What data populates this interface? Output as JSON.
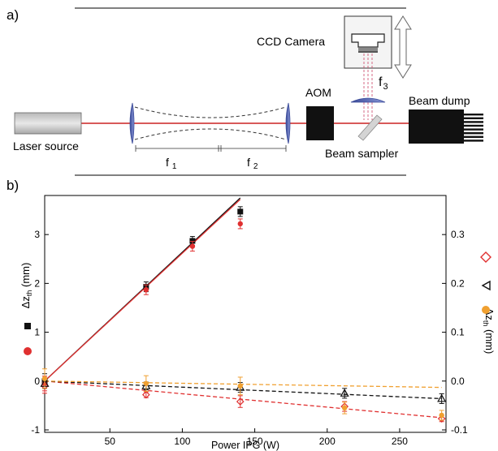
{
  "panel_a": {
    "label": "a)",
    "laser_label": "Laser source",
    "f1_label": "f",
    "f1_sub": "1",
    "f2_label": "f",
    "f2_sub": "2",
    "aom_label": "AOM",
    "ccd_label": "CCD Camera",
    "f3_label": "f",
    "f3_sub": "3",
    "beam_dump_label": "Beam dump",
    "beam_sampler_label": "Beam sampler",
    "colors": {
      "beam": "#cc2222",
      "lens": "#4a5aa8",
      "aom": "#111111"
    }
  },
  "panel_b": {
    "label": "b)",
    "xlabel": "Power IPG (W)",
    "left_ylabel": "Δz",
    "left_ylabel_sub": "th",
    "left_ylabel_unit": " (mm)",
    "right_ylabel": "Δz",
    "right_ylabel_sub": "th",
    "right_ylabel_unit": " (mm)"
  },
  "chart_data": {
    "type": "scatter",
    "xlabel": "Power IPG (W)",
    "x_ticks": [
      "50",
      "100",
      "150",
      "200",
      "250"
    ],
    "left_y_ticks": [
      "3",
      "2",
      "1",
      "0",
      "-1"
    ],
    "right_y_ticks": [
      "0.3",
      "0.2",
      "0.1",
      "0.0",
      "-0.1"
    ],
    "xlim": [
      5,
      282
    ],
    "ylim_left": [
      -1.05,
      3.8
    ],
    "ylim_right": [
      -0.105,
      0.38
    ],
    "grid": false,
    "legend_placement": "beside-axes",
    "series": [
      {
        "axis": "left",
        "marker": "square",
        "color": "#111111",
        "points": [
          [
            5,
            0.0,
            0.15
          ],
          [
            75,
            1.93,
            0.1
          ],
          [
            107,
            2.87,
            0.09
          ],
          [
            140,
            3.47,
            0.1
          ]
        ],
        "fit": [
          [
            5,
            0.0
          ],
          [
            140,
            3.75
          ]
        ]
      },
      {
        "axis": "left",
        "marker": "circle",
        "color": "#e03030",
        "points": [
          [
            5,
            -0.05,
            0.15
          ],
          [
            75,
            1.87,
            0.1
          ],
          [
            107,
            2.76,
            0.1
          ],
          [
            140,
            3.22,
            0.1
          ]
        ],
        "fit": [
          [
            5,
            0.0
          ],
          [
            140,
            3.72
          ]
        ]
      },
      {
        "axis": "right",
        "marker": "diamond-open",
        "color": "#e03030",
        "points": [
          [
            5,
            -0.01,
            0.015
          ],
          [
            75,
            -0.028,
            0.006
          ],
          [
            140,
            -0.042,
            0.012
          ],
          [
            212,
            -0.052,
            0.01
          ],
          [
            279,
            -0.077,
            0.006
          ]
        ],
        "fit": [
          [
            5,
            0.0
          ],
          [
            279,
            -0.075
          ]
        ]
      },
      {
        "axis": "right",
        "marker": "triangle-open",
        "color": "#111111",
        "points": [
          [
            5,
            -0.005,
            0.01
          ],
          [
            75,
            -0.01,
            0.008
          ],
          [
            140,
            -0.013,
            0.01
          ],
          [
            212,
            -0.025,
            0.01
          ],
          [
            279,
            -0.036,
            0.01
          ]
        ],
        "fit": [
          [
            5,
            0.0
          ],
          [
            279,
            -0.036
          ]
        ]
      },
      {
        "axis": "right",
        "marker": "circle",
        "color": "#f0a030",
        "points": [
          [
            5,
            0.005,
            0.02
          ],
          [
            75,
            -0.005,
            0.016
          ],
          [
            140,
            -0.01,
            0.018
          ],
          [
            212,
            -0.055,
            0.012
          ],
          [
            279,
            -0.07,
            0.01
          ]
        ],
        "fit": [
          [
            5,
            0.0
          ],
          [
            279,
            -0.013
          ]
        ]
      }
    ]
  }
}
